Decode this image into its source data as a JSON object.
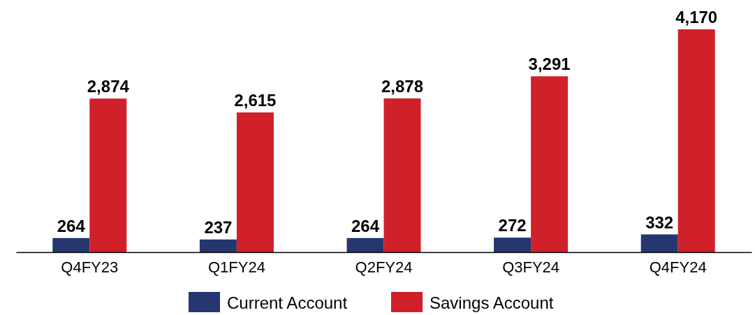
{
  "chart_data": {
    "type": "bar",
    "categories": [
      "Q4FY23",
      "Q1FY24",
      "Q2FY24",
      "Q3FY24",
      "Q4FY24"
    ],
    "series": [
      {
        "name": "Current Account",
        "color": "#253670",
        "values": [
          264,
          237,
          264,
          272,
          332
        ],
        "value_labels": [
          "264",
          "237",
          "264",
          "272",
          "332"
        ]
      },
      {
        "name": "Savings Account",
        "color": "#d0202a",
        "values": [
          2874,
          2615,
          2878,
          3291,
          4170
        ],
        "value_labels": [
          "2,874",
          "2,615",
          "2,878",
          "3,291",
          "4,170"
        ]
      }
    ],
    "legend": "bottom"
  }
}
